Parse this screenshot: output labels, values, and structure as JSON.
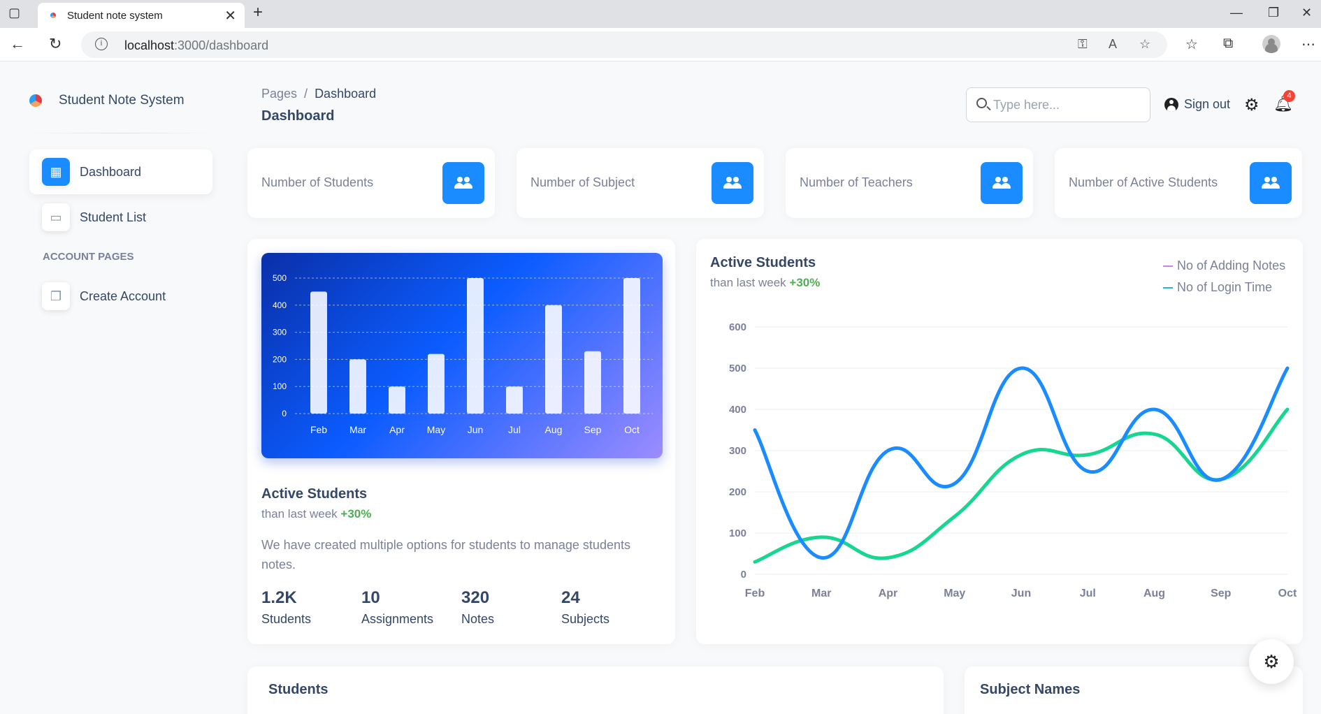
{
  "browser": {
    "tab_title": "Student note system",
    "url_host": "localhost",
    "url_path": ":3000/dashboard"
  },
  "sidebar": {
    "brand": "Student Note System",
    "items": [
      {
        "label": "Dashboard",
        "icon": "dashboard-icon"
      },
      {
        "label": "Student List",
        "icon": "credit-card-icon"
      }
    ],
    "section_label": "ACCOUNT PAGES",
    "account_items": [
      {
        "label": "Create Account",
        "icon": "copy-icon"
      }
    ]
  },
  "header": {
    "breadcrumb_root": "Pages",
    "breadcrumb_current": "Dashboard",
    "title": "Dashboard",
    "search_placeholder": "Type here...",
    "sign_out": "Sign out",
    "notification_count": "4"
  },
  "stats": [
    {
      "label": "Number of Students"
    },
    {
      "label": "Number of Subject"
    },
    {
      "label": "Number of Teachers"
    },
    {
      "label": "Number of Active Students"
    }
  ],
  "bar_card": {
    "title": "Active Students",
    "subtitle_prefix": "than last week",
    "subtitle_delta": "+30%",
    "description": "We have created multiple options for students to manage students notes.",
    "kpis": [
      {
        "value": "1.2K",
        "label": "Students"
      },
      {
        "value": "10",
        "label": "Assignments"
      },
      {
        "value": "320",
        "label": "Notes"
      },
      {
        "value": "24",
        "label": "Subjects"
      }
    ]
  },
  "line_card": {
    "title": "Active Students",
    "subtitle_prefix": "than last week",
    "subtitle_delta": "+30%"
  },
  "bottom": {
    "students_title": "Students",
    "subjects_title": "Subject Names"
  },
  "colors": {
    "accent": "#1a8cff",
    "line_login": "#1a8cff",
    "line_notes": "#17d68f",
    "positive": "#4caf50"
  },
  "chart_data": [
    {
      "type": "bar",
      "title": "",
      "categories": [
        "Feb",
        "Mar",
        "Apr",
        "May",
        "Jun",
        "Jul",
        "Aug",
        "Sep",
        "Oct"
      ],
      "values": [
        450,
        200,
        100,
        220,
        500,
        100,
        400,
        230,
        500
      ],
      "ylim": [
        0,
        500
      ],
      "yticks": [
        0,
        100,
        200,
        300,
        400,
        500
      ],
      "grid": true
    },
    {
      "type": "line",
      "title": "",
      "categories": [
        "Feb",
        "Mar",
        "Apr",
        "May",
        "Jun",
        "Jul",
        "Aug",
        "Sep",
        "Oct"
      ],
      "series": [
        {
          "name": "No of Adding Notes",
          "legend_color": "#c084fc",
          "color": "#17d68f",
          "values": [
            30,
            90,
            40,
            140,
            290,
            290,
            340,
            230,
            400
          ]
        },
        {
          "name": "No of Login Time",
          "legend_color": "#22b8cf",
          "color": "#1a8cff",
          "values": [
            350,
            40,
            300,
            220,
            500,
            250,
            400,
            230,
            500
          ]
        }
      ],
      "ylim": [
        0,
        600
      ],
      "yticks": [
        0,
        100,
        200,
        300,
        400,
        500,
        600
      ],
      "legend": "top-right",
      "grid": true
    }
  ]
}
